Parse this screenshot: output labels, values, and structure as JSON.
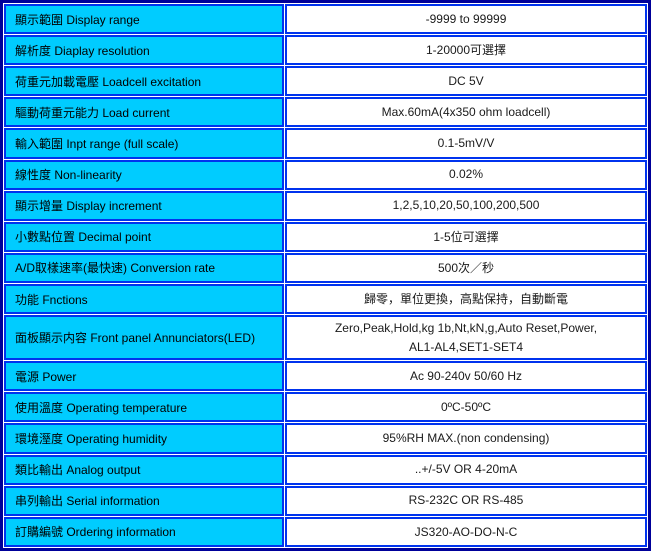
{
  "colors": {
    "frame_border": "#000099",
    "cell_border": "#0033ee",
    "label_background": "#00ccff",
    "value_background": "#ffffff",
    "text": "#000000"
  },
  "table": {
    "rows": [
      {
        "label": "顯示範圍 Display range",
        "value": "-9999 to 99999"
      },
      {
        "label": "解析度 Diaplay resolution",
        "value": "1-20000可選擇"
      },
      {
        "label": "荷重元加載電壓 Loadcell excitation",
        "value": "DC 5V"
      },
      {
        "label": "驅動荷重元能力 Load current",
        "value": "Max.60mA(4x350 ohm loadcell)"
      },
      {
        "label": "輸入範圍 Inpt range (full scale)",
        "value": "0.1-5mV/V"
      },
      {
        "label": "線性度 Non-linearity",
        "value": "0.02%"
      },
      {
        "label": "顯示增量 Display increment",
        "value": "1,2,5,10,20,50,100,200,500"
      },
      {
        "label": "小數點位置 Decimal point",
        "value": "1-5位可選擇"
      },
      {
        "label": "A/D取樣速率(最快速) Conversion rate",
        "value": "500次／秒"
      },
      {
        "label": "功能 Fnctions",
        "value": "歸零，單位更換，高點保持，自動斷電"
      },
      {
        "label": "面板顯示内容 Front panel Annunciators(LED)",
        "value": "Zero,Peak,Hold,kg 1b,Nt,kN,g,Auto Reset,Power,\nAL1-AL4,SET1-SET4",
        "tall": true
      },
      {
        "label": "電源 Power",
        "value": "Ac 90-240v 50/60 Hz"
      },
      {
        "label": "使用溫度 Operating temperature",
        "value": "0ºC-50ºC"
      },
      {
        "label": "環境溼度 Operating humidity",
        "value": "95%RH MAX.(non condensing)"
      },
      {
        "label": "類比輸出 Analog output",
        "value": "..+/-5V OR 4-20mA"
      },
      {
        "label": "串列輸出 Serial information",
        "value": "RS-232C OR RS-485"
      },
      {
        "label": "訂購編號 Ordering information",
        "value": "JS320-AO-DO-N-C"
      }
    ]
  }
}
